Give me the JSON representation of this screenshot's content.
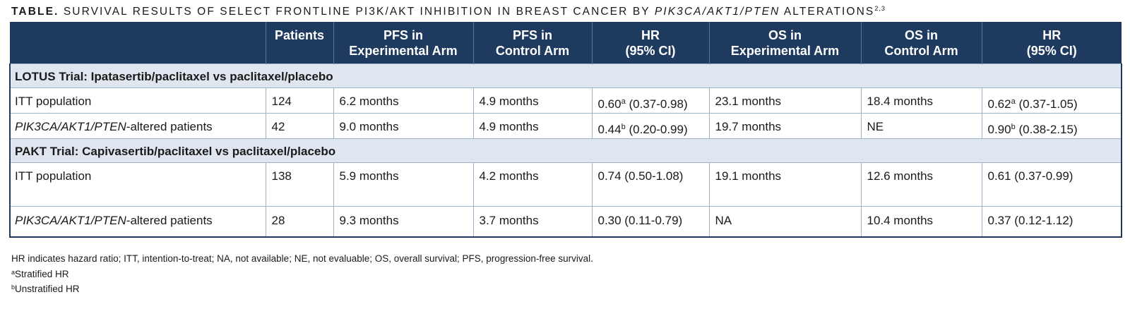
{
  "title": {
    "lead": "TABLE.",
    "part1": "SURVIVAL RESULTS OF SELECT FRONTLINE PI3K/AKT INHIBITION IN BREAST CANCER BY",
    "italic": "PIK3CA/AKT1/PTEN",
    "part2": "ALTERATIONS",
    "refs": "2,3"
  },
  "headers": {
    "patients": "Patients",
    "pfs_exp": [
      "PFS in",
      "Experimental Arm"
    ],
    "pfs_ctrl": [
      "PFS in",
      "Control Arm"
    ],
    "hr1": [
      "HR",
      "(95% CI)"
    ],
    "os_exp": [
      "OS in",
      "Experimental Arm"
    ],
    "os_ctrl": [
      "OS in",
      "Control Arm"
    ],
    "hr2": [
      "HR",
      "(95% CI)"
    ]
  },
  "sections": [
    {
      "title": "LOTUS Trial: Ipatasertib/paclitaxel vs paclitaxel/placebo",
      "rows": [
        {
          "label": "ITT population",
          "patients": "124",
          "pfs_exp": "6.2 months",
          "pfs_ctrl": "4.9 months",
          "hr1_value": "0.60",
          "hr1_mark": "a",
          "hr1_ci": "(0.37-0.98)",
          "os_exp": "23.1 months",
          "os_ctrl": "18.4 months",
          "hr2_value": "0.62",
          "hr2_mark": "a",
          "hr2_ci": "(0.37-1.05)"
        },
        {
          "label_italic": "PIK3CA/AKT1/PTEN",
          "label_rest": "-altered patients",
          "patients": "42",
          "pfs_exp": "9.0 months",
          "pfs_ctrl": "4.9 months",
          "hr1_value": "0.44",
          "hr1_mark": "b",
          "hr1_ci": "(0.20-0.99)",
          "os_exp": "19.7 months",
          "os_ctrl": "NE",
          "hr2_value": "0.90",
          "hr2_mark": "b",
          "hr2_ci": "(0.38-2.15)"
        }
      ]
    },
    {
      "title": "PAKT Trial: Capivasertib/paclitaxel vs paclitaxel/placebo",
      "rows": [
        {
          "label": "ITT population",
          "patients": "138",
          "pfs_exp": "5.9 months",
          "pfs_ctrl": "4.2 months",
          "hr1": "0.74 (0.50-1.08)",
          "os_exp": "19.1 months",
          "os_ctrl": "12.6 months",
          "hr2": "0.61 (0.37-0.99)"
        },
        {
          "label_italic": "PIK3CA/AKT1/PTEN",
          "label_rest": "-altered patients",
          "patients": "28",
          "pfs_exp": "9.3 months",
          "pfs_ctrl": "3.7 months",
          "hr1": "0.30 (0.11-0.79)",
          "os_exp": "NA",
          "os_ctrl": "10.4 months",
          "hr2": "0.37 (0.12-1.12)"
        }
      ]
    }
  ],
  "footnotes": {
    "abbrev": "HR indicates hazard ratio; ITT, intention-to-treat; NA, not available; NE, not evaluable; OS, overall survival; PFS, progression-free survival.",
    "a_mark": "a",
    "a_text": "Stratified HR",
    "b_mark": "b",
    "b_text": "Unstratified HR"
  }
}
